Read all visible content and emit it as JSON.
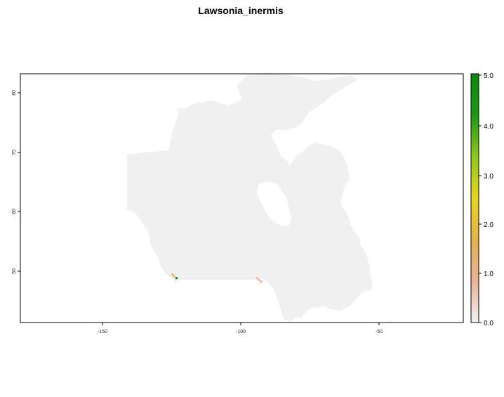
{
  "title": "Lawsonia_inermis",
  "map": {
    "x_ticks": [
      "-150",
      "-100",
      "-50"
    ],
    "y_ticks": [
      "80",
      "70",
      "60",
      "50"
    ],
    "land_color": "#f0f0f0",
    "frame_color": "#000000"
  },
  "legend": {
    "labels": [
      "5.0",
      "4.0",
      "3.0",
      "2.0",
      "1.0",
      "0.0"
    ],
    "colors": [
      "#f2f2f2",
      "#ebb199",
      "#e8b04a",
      "#e8d61a",
      "#90c81a",
      "#1a9a12",
      "#0b8a0b"
    ]
  },
  "chart_data": {
    "type": "heatmap",
    "title": "Lawsonia_inermis",
    "xlabel": "",
    "ylabel": "",
    "x_ticks": [
      -150,
      -100,
      -50
    ],
    "y_ticks": [
      50,
      60,
      70,
      80
    ],
    "xlim": [
      -180,
      -20
    ],
    "ylim": [
      41.5,
      83.5
    ],
    "value_range": [
      0,
      5
    ],
    "legend_position": "right",
    "cells": [
      {
        "lon": -125.0,
        "lat": 49.6,
        "value": 1.8
      },
      {
        "lon": -124.4,
        "lat": 49.3,
        "value": 1.2
      },
      {
        "lon": -123.6,
        "lat": 49.0,
        "value": 5.0
      },
      {
        "lon": -94.5,
        "lat": 49.0,
        "value": 0.9
      },
      {
        "lon": -93.8,
        "lat": 48.7,
        "value": 0.6
      },
      {
        "lon": -93.0,
        "lat": 48.4,
        "value": 0.5
      },
      {
        "lon": -92.3,
        "lat": 48.6,
        "value": 0.4
      }
    ]
  }
}
